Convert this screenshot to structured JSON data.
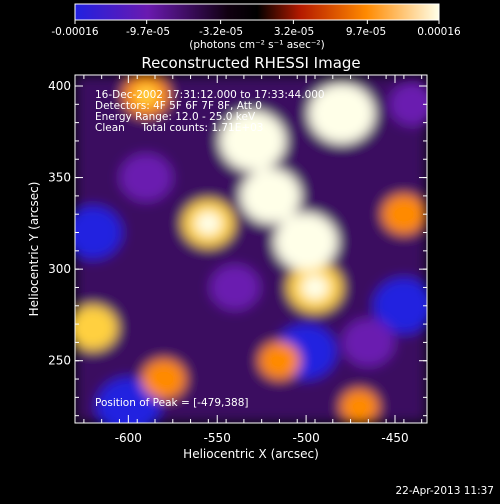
{
  "colorbar": {
    "tick_labels": [
      "-0.00016",
      "-9.7e-05",
      "-3.2e-05",
      "3.2e-05",
      "9.7e-05",
      "0.00016"
    ],
    "values": [
      -0.00016,
      -9.7e-05,
      -3.2e-05,
      3.2e-05,
      9.7e-05,
      0.00016
    ],
    "range": [
      -0.00016,
      0.00016
    ],
    "units": "(photons cm⁻² s⁻¹ asec⁻²)",
    "colors": [
      "#2020e0",
      "#6a1ab0",
      "#000000",
      "#b51a00",
      "#ff8a00",
      "#ffffe8"
    ]
  },
  "header": {
    "title": "Reconstructed RHESSI Image"
  },
  "info": {
    "line1": "16-Dec-2002 17:31:12.000 to 17:33:44.000",
    "line2": "Detectors: 4F 5F 6F 7F 8F, Att 0",
    "line3": "Energy Range: 12.0 - 25.0 keV",
    "line4": "Clean     Total counts: 1.71E+03",
    "peak": "Position of Peak = [-479,388]"
  },
  "footer": {
    "timestamp": "22-Apr-2013 11:37"
  },
  "chart_data": {
    "type": "heatmap",
    "title": "Reconstructed RHESSI Image",
    "xlabel": "Heliocentric X (arcsec)",
    "ylabel": "Heliocentric Y (arcsec)",
    "xlim": [
      -630,
      -432
    ],
    "ylim": [
      216,
      406
    ],
    "x_ticks": [
      -600,
      -550,
      -500,
      -450
    ],
    "x_tick_labels": [
      "-600",
      "-550",
      "-500",
      "-450"
    ],
    "y_ticks": [
      250,
      300,
      350,
      400
    ],
    "y_tick_labels": [
      "250",
      "300",
      "350",
      "400"
    ],
    "peak_position": [
      -479,
      388
    ],
    "sources": [
      {
        "x": -530,
        "y": 370,
        "value": 0.00016
      },
      {
        "x": -520,
        "y": 340,
        "value": 0.00014
      },
      {
        "x": -500,
        "y": 315,
        "value": 0.00015
      },
      {
        "x": -495,
        "y": 290,
        "value": 0.00012
      },
      {
        "x": -480,
        "y": 385,
        "value": 0.00016
      },
      {
        "x": -555,
        "y": 325,
        "value": 0.00011
      },
      {
        "x": -590,
        "y": 395,
        "value": 9e-05
      },
      {
        "x": -620,
        "y": 268,
        "value": 0.0001
      },
      {
        "x": -445,
        "y": 330,
        "value": 8e-05
      },
      {
        "x": -515,
        "y": 250,
        "value": 7e-05
      },
      {
        "x": -580,
        "y": 240,
        "value": 8e-05
      },
      {
        "x": -470,
        "y": 225,
        "value": 6e-05
      },
      {
        "x": -600,
        "y": 225,
        "value": -0.00015
      },
      {
        "x": -620,
        "y": 320,
        "value": -0.00013
      },
      {
        "x": -500,
        "y": 255,
        "value": -0.00014
      },
      {
        "x": -445,
        "y": 280,
        "value": -0.00014
      },
      {
        "x": -590,
        "y": 350,
        "value": -0.00011
      },
      {
        "x": -440,
        "y": 390,
        "value": -9e-05
      },
      {
        "x": -540,
        "y": 290,
        "value": -0.0001
      },
      {
        "x": -465,
        "y": 260,
        "value": -0.00011
      }
    ]
  }
}
